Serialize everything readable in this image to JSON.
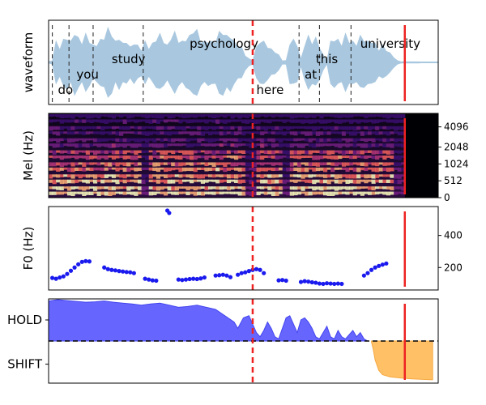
{
  "chart_data": [
    {
      "type": "area",
      "ylabel": "waveform",
      "words": [
        {
          "text": "do",
          "x": 0.05
        },
        {
          "text": "you",
          "x": 0.15
        },
        {
          "text": "study",
          "x": 0.34
        },
        {
          "text": "psychology",
          "x": 0.76
        },
        {
          "text": "here",
          "x": 1.12
        },
        {
          "text": "at",
          "x": 1.38
        },
        {
          "text": "this",
          "x": 1.44
        },
        {
          "text": "university",
          "x": 1.68
        }
      ],
      "word_boundaries": [
        0.02,
        0.11,
        0.24,
        0.51,
        1.35,
        1.46,
        1.63
      ],
      "waveform_envelope": [
        [
          0.0,
          0.02
        ],
        [
          0.02,
          0.05
        ],
        [
          0.04,
          0.55
        ],
        [
          0.06,
          0.4
        ],
        [
          0.08,
          0.6
        ],
        [
          0.1,
          0.7
        ],
        [
          0.12,
          0.55
        ],
        [
          0.14,
          0.85
        ],
        [
          0.16,
          0.65
        ],
        [
          0.18,
          0.55
        ],
        [
          0.2,
          0.75
        ],
        [
          0.22,
          0.6
        ],
        [
          0.24,
          0.45
        ],
        [
          0.26,
          0.5
        ],
        [
          0.28,
          0.6
        ],
        [
          0.3,
          0.7
        ],
        [
          0.32,
          0.9
        ],
        [
          0.34,
          0.8
        ],
        [
          0.36,
          0.55
        ],
        [
          0.38,
          0.7
        ],
        [
          0.4,
          0.5
        ],
        [
          0.42,
          0.6
        ],
        [
          0.44,
          0.4
        ],
        [
          0.46,
          0.55
        ],
        [
          0.48,
          0.45
        ],
        [
          0.5,
          0.35
        ],
        [
          0.52,
          0.55
        ],
        [
          0.54,
          0.4
        ],
        [
          0.56,
          0.5
        ],
        [
          0.58,
          0.65
        ],
        [
          0.6,
          0.75
        ],
        [
          0.62,
          0.6
        ],
        [
          0.64,
          0.45
        ],
        [
          0.66,
          0.7
        ],
        [
          0.68,
          0.8
        ],
        [
          0.7,
          0.6
        ],
        [
          0.72,
          0.55
        ],
        [
          0.74,
          0.65
        ],
        [
          0.76,
          0.7
        ],
        [
          0.78,
          0.9
        ],
        [
          0.8,
          0.85
        ],
        [
          0.82,
          0.6
        ],
        [
          0.84,
          0.55
        ],
        [
          0.86,
          0.6
        ],
        [
          0.88,
          0.55
        ],
        [
          0.9,
          0.6
        ],
        [
          0.92,
          0.8
        ],
        [
          0.94,
          0.85
        ],
        [
          0.96,
          0.7
        ],
        [
          0.98,
          0.75
        ],
        [
          1.0,
          0.55
        ],
        [
          1.02,
          0.45
        ],
        [
          1.04,
          0.4
        ],
        [
          1.06,
          0.2
        ],
        [
          1.08,
          0.1
        ],
        [
          1.1,
          0.05
        ],
        [
          1.12,
          0.4
        ],
        [
          1.14,
          0.6
        ],
        [
          1.16,
          0.55
        ],
        [
          1.18,
          0.45
        ],
        [
          1.2,
          0.35
        ],
        [
          1.22,
          0.3
        ],
        [
          1.24,
          0.2
        ],
        [
          1.26,
          0.05
        ],
        [
          1.28,
          0.05
        ],
        [
          1.3,
          0.55
        ],
        [
          1.32,
          0.6
        ],
        [
          1.34,
          0.5
        ],
        [
          1.36,
          0.1
        ],
        [
          1.38,
          0.5
        ],
        [
          1.4,
          0.7
        ],
        [
          1.42,
          0.55
        ],
        [
          1.44,
          0.65
        ],
        [
          1.46,
          0.45
        ],
        [
          1.48,
          0.2
        ],
        [
          1.5,
          0.05
        ],
        [
          1.52,
          0.55
        ],
        [
          1.54,
          0.65
        ],
        [
          1.56,
          0.6
        ],
        [
          1.58,
          0.5
        ],
        [
          1.6,
          0.75
        ],
        [
          1.62,
          0.6
        ],
        [
          1.64,
          0.55
        ],
        [
          1.66,
          0.5
        ],
        [
          1.68,
          0.7
        ],
        [
          1.7,
          0.65
        ],
        [
          1.72,
          0.55
        ],
        [
          1.74,
          0.6
        ],
        [
          1.76,
          0.5
        ],
        [
          1.78,
          0.35
        ],
        [
          1.8,
          0.45
        ],
        [
          1.82,
          0.35
        ],
        [
          1.84,
          0.25
        ],
        [
          1.86,
          0.15
        ],
        [
          1.88,
          0.05
        ],
        [
          1.9,
          0.02
        ],
        [
          1.92,
          0.02
        ],
        [
          2.0,
          0.02
        ]
      ],
      "voice_end": 1.9
    },
    {
      "type": "heatmap",
      "ylabel": "Mel (Hz)",
      "yticks": [
        {
          "label": "4096",
          "frac": 0.84
        },
        {
          "label": "2048",
          "frac": 0.6
        },
        {
          "label": "1024",
          "frac": 0.4
        },
        {
          "label": "512",
          "frac": 0.2
        },
        {
          "label": "0",
          "frac": 0.0
        }
      ],
      "voice_end": 1.92
    },
    {
      "type": "scatter",
      "ylabel": "F0 (Hz)",
      "ylim": [
        60,
        580
      ],
      "yticks": [
        200,
        400
      ],
      "points": [
        [
          0.02,
          135
        ],
        [
          0.04,
          130
        ],
        [
          0.06,
          138
        ],
        [
          0.08,
          145
        ],
        [
          0.1,
          160
        ],
        [
          0.12,
          180
        ],
        [
          0.14,
          200
        ],
        [
          0.16,
          220
        ],
        [
          0.18,
          235
        ],
        [
          0.2,
          240
        ],
        [
          0.22,
          238
        ],
        [
          0.3,
          200
        ],
        [
          0.32,
          190
        ],
        [
          0.34,
          185
        ],
        [
          0.36,
          182
        ],
        [
          0.38,
          178
        ],
        [
          0.4,
          175
        ],
        [
          0.42,
          172
        ],
        [
          0.44,
          170
        ],
        [
          0.46,
          165
        ],
        [
          0.52,
          130
        ],
        [
          0.54,
          125
        ],
        [
          0.56,
          120
        ],
        [
          0.58,
          118
        ],
        [
          0.64,
          555
        ],
        [
          0.65,
          540
        ],
        [
          0.7,
          125
        ],
        [
          0.72,
          122
        ],
        [
          0.74,
          125
        ],
        [
          0.76,
          128
        ],
        [
          0.78,
          130
        ],
        [
          0.8,
          128
        ],
        [
          0.82,
          132
        ],
        [
          0.84,
          138
        ],
        [
          0.9,
          150
        ],
        [
          0.92,
          152
        ],
        [
          0.94,
          155
        ],
        [
          0.96,
          150
        ],
        [
          0.98,
          140
        ],
        [
          1.02,
          155
        ],
        [
          1.04,
          165
        ],
        [
          1.06,
          170
        ],
        [
          1.08,
          178
        ],
        [
          1.1,
          185
        ],
        [
          1.12,
          190
        ],
        [
          1.14,
          185
        ],
        [
          1.16,
          165
        ],
        [
          1.24,
          120
        ],
        [
          1.26,
          122
        ],
        [
          1.28,
          118
        ],
        [
          1.36,
          110
        ],
        [
          1.38,
          115
        ],
        [
          1.4,
          112
        ],
        [
          1.42,
          108
        ],
        [
          1.44,
          105
        ],
        [
          1.46,
          100
        ],
        [
          1.48,
          98
        ],
        [
          1.5,
          102
        ],
        [
          1.52,
          100
        ],
        [
          1.54,
          98
        ],
        [
          1.56,
          100
        ],
        [
          1.58,
          98
        ],
        [
          1.7,
          150
        ],
        [
          1.72,
          165
        ],
        [
          1.74,
          185
        ],
        [
          1.76,
          200
        ],
        [
          1.78,
          210
        ],
        [
          1.8,
          218
        ],
        [
          1.82,
          225
        ]
      ]
    },
    {
      "type": "area",
      "yticks": [
        "HOLD",
        "SHIFT"
      ],
      "ylim": [
        -1,
        1
      ],
      "hold_curve": [
        [
          0.0,
          0.95
        ],
        [
          0.05,
          0.98
        ],
        [
          0.1,
          0.96
        ],
        [
          0.15,
          0.94
        ],
        [
          0.2,
          0.92
        ],
        [
          0.25,
          0.93
        ],
        [
          0.3,
          0.95
        ],
        [
          0.35,
          0.92
        ],
        [
          0.4,
          0.9
        ],
        [
          0.45,
          0.88
        ],
        [
          0.5,
          0.85
        ],
        [
          0.55,
          0.88
        ],
        [
          0.6,
          0.9
        ],
        [
          0.65,
          0.85
        ],
        [
          0.7,
          0.8
        ],
        [
          0.75,
          0.82
        ],
        [
          0.8,
          0.85
        ],
        [
          0.85,
          0.8
        ],
        [
          0.9,
          0.75
        ],
        [
          0.95,
          0.6
        ],
        [
          1.0,
          0.45
        ],
        [
          1.02,
          0.3
        ],
        [
          1.05,
          0.55
        ],
        [
          1.08,
          0.6
        ],
        [
          1.1,
          0.4
        ],
        [
          1.12,
          0.2
        ],
        [
          1.14,
          0.1
        ],
        [
          1.16,
          0.25
        ],
        [
          1.18,
          0.45
        ],
        [
          1.2,
          0.3
        ],
        [
          1.22,
          0.1
        ],
        [
          1.24,
          0.05
        ],
        [
          1.26,
          0.3
        ],
        [
          1.28,
          0.55
        ],
        [
          1.3,
          0.6
        ],
        [
          1.32,
          0.4
        ],
        [
          1.34,
          0.2
        ],
        [
          1.36,
          0.5
        ],
        [
          1.38,
          0.55
        ],
        [
          1.4,
          0.45
        ],
        [
          1.42,
          0.3
        ],
        [
          1.44,
          0.1
        ],
        [
          1.46,
          0.05
        ],
        [
          1.48,
          0.2
        ],
        [
          1.5,
          0.35
        ],
        [
          1.52,
          0.1
        ],
        [
          1.54,
          0.05
        ],
        [
          1.56,
          0.25
        ],
        [
          1.58,
          0.1
        ],
        [
          1.6,
          0.05
        ],
        [
          1.62,
          0.15
        ],
        [
          1.64,
          0.25
        ],
        [
          1.66,
          0.1
        ],
        [
          1.68,
          0.2
        ],
        [
          1.7,
          0.05
        ],
        [
          1.72,
          0.0
        ]
      ],
      "shift_curve": [
        [
          1.74,
          -0.02
        ],
        [
          1.75,
          -0.2
        ],
        [
          1.76,
          -0.45
        ],
        [
          1.78,
          -0.7
        ],
        [
          1.8,
          -0.8
        ],
        [
          1.84,
          -0.85
        ],
        [
          1.9,
          -0.88
        ],
        [
          1.96,
          -0.9
        ],
        [
          2.02,
          -0.91
        ],
        [
          2.07,
          -0.92
        ]
      ],
      "hold_color": "#6666ff",
      "shift_color": "#ffc066"
    }
  ],
  "markers": {
    "dashed_red_x": 1.1,
    "solid_red_x": 1.92,
    "red_color": "#ee2222"
  }
}
